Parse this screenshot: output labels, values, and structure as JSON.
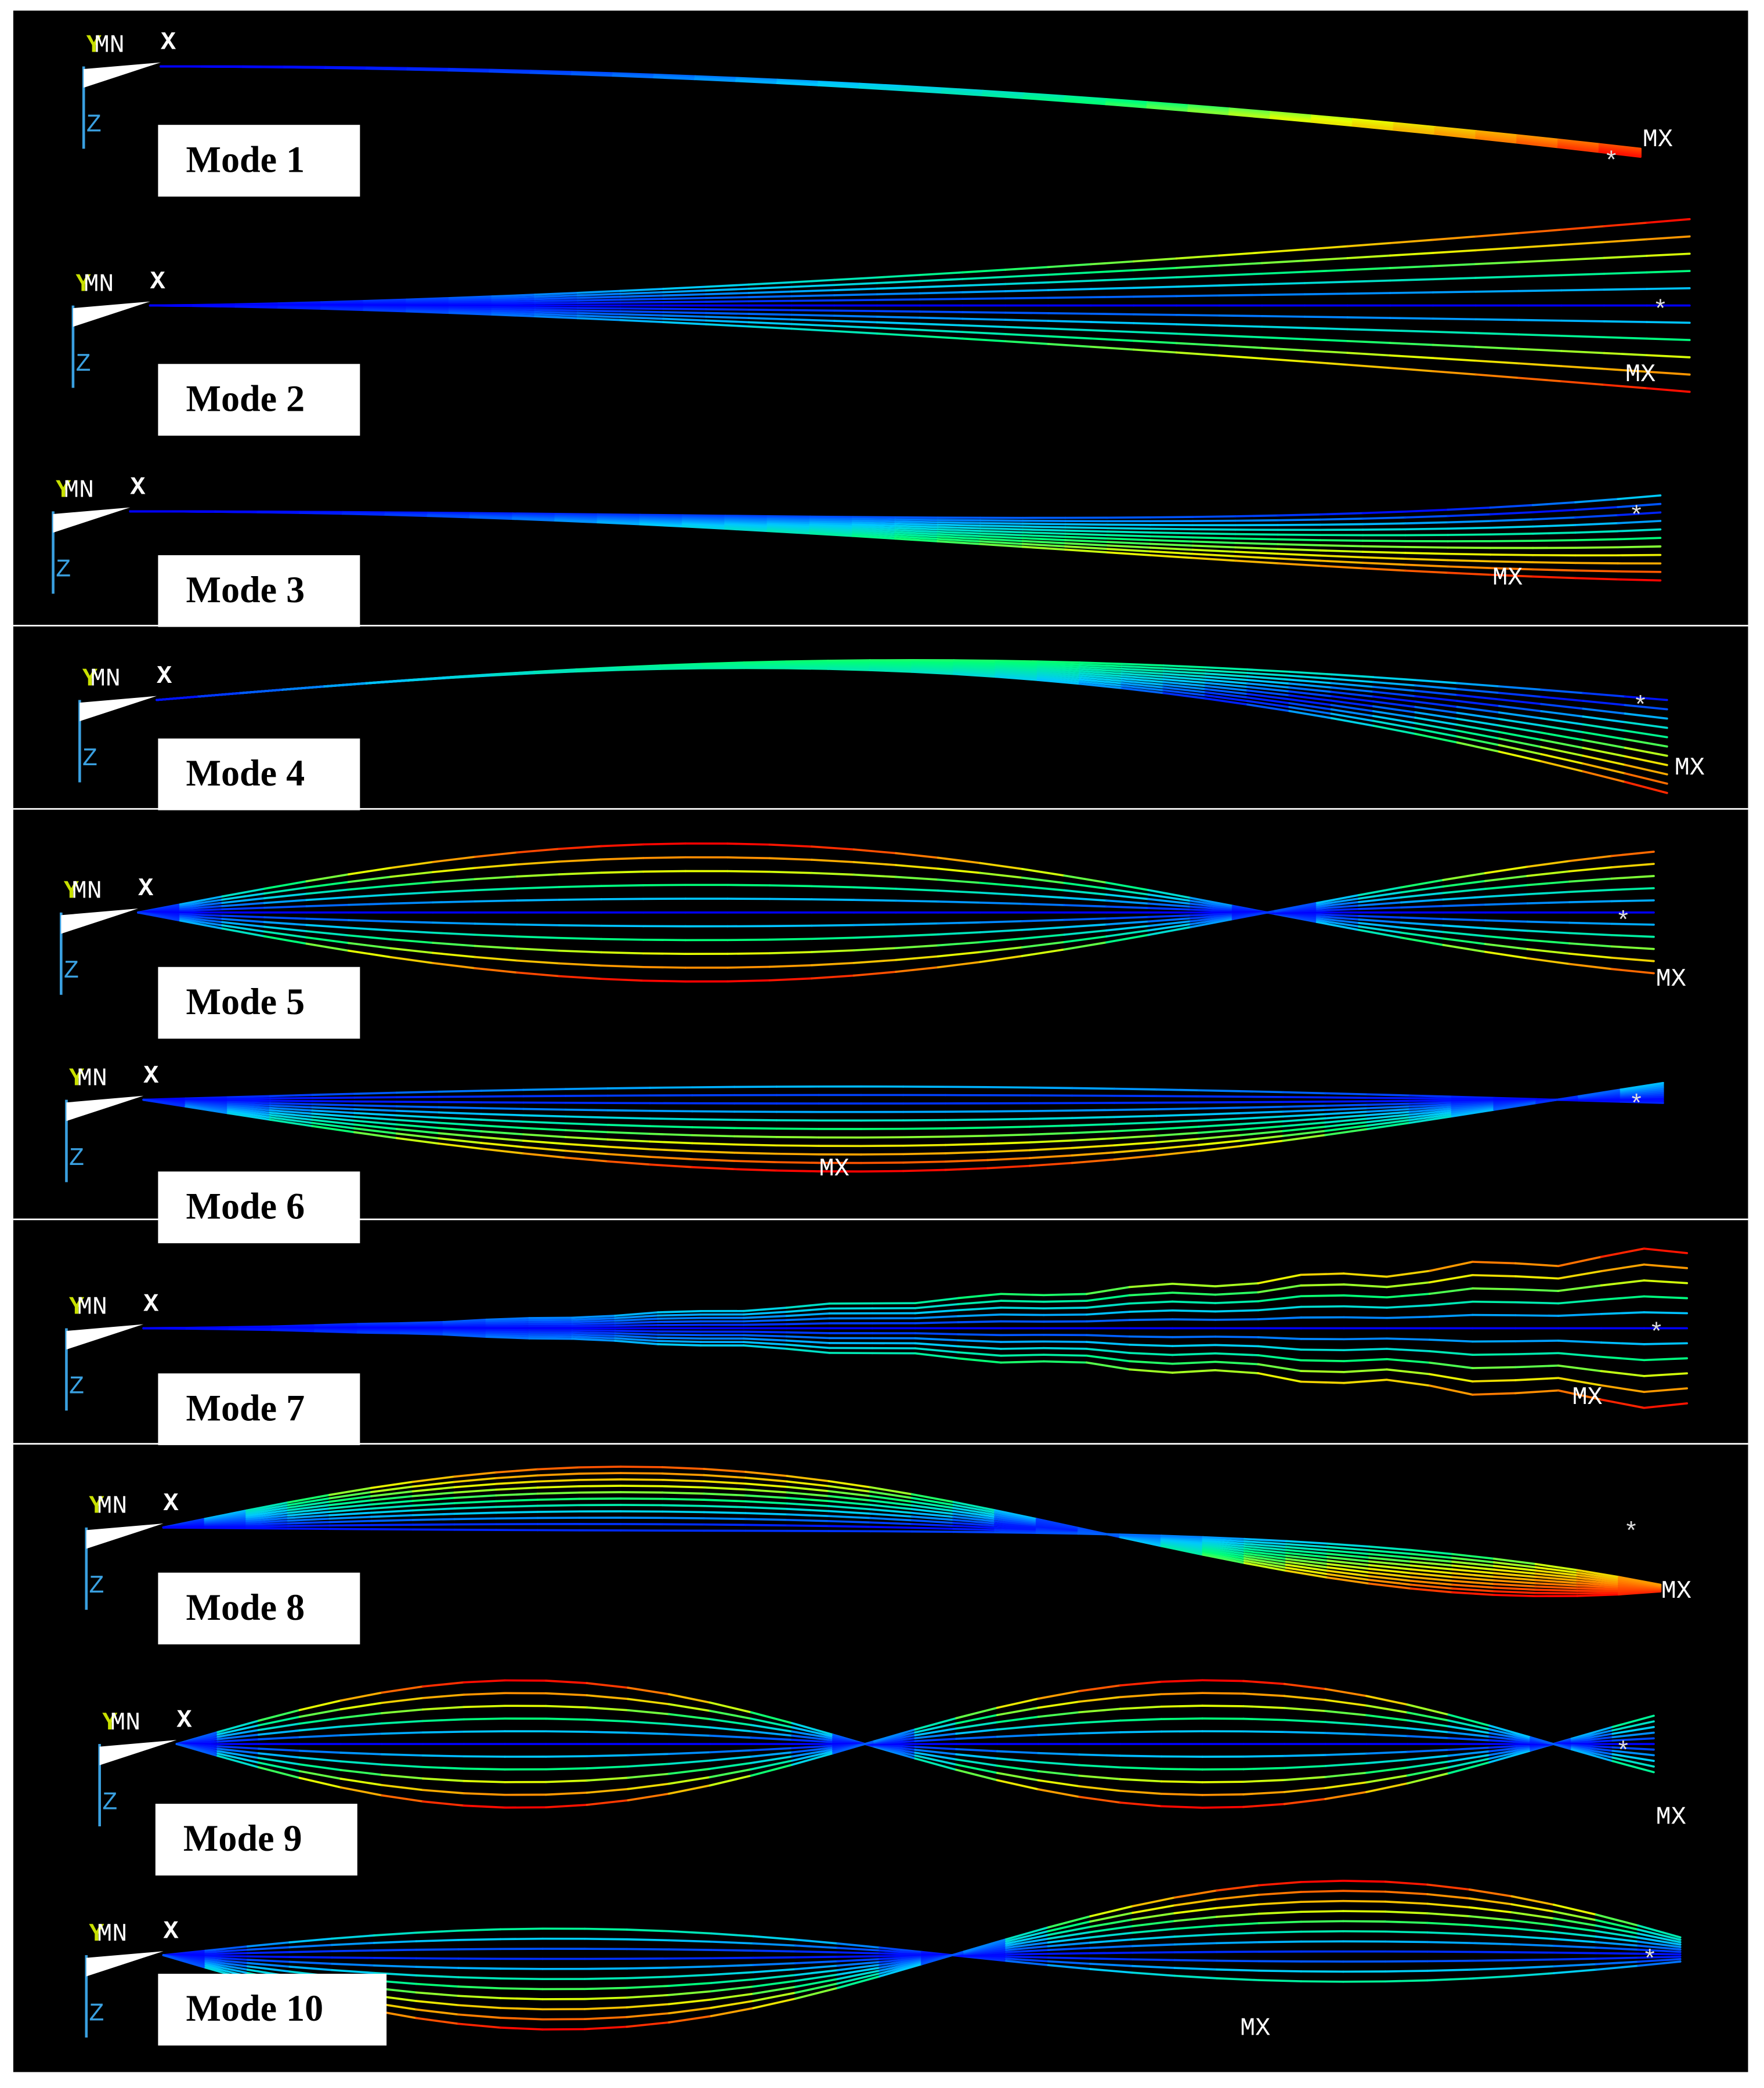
{
  "panels": [
    {
      "label": "Mode 1",
      "y_axis": "Y",
      "min": "MN",
      "x_axis": "X",
      "z_axis": "Z",
      "max": "MX",
      "node": "*"
    },
    {
      "label": "Mode 2",
      "y_axis": "Y",
      "min": "MN",
      "x_axis": "X",
      "z_axis": "Z",
      "max": "MX",
      "node": "*"
    },
    {
      "label": "Mode 3",
      "y_axis": "Y",
      "min": "MN",
      "x_axis": "X",
      "z_axis": "Z",
      "max": "MX",
      "node": "*"
    },
    {
      "label": "Mode 4",
      "y_axis": "Y",
      "min": "MN",
      "x_axis": "X",
      "z_axis": "Z",
      "max": "MX",
      "node": "*"
    },
    {
      "label": "Mode 5",
      "y_axis": "Y",
      "min": "MN",
      "x_axis": "X",
      "z_axis": "Z",
      "max": "MX",
      "node": "*"
    },
    {
      "label": "Mode 6",
      "y_axis": "Y",
      "min": "MN",
      "x_axis": "X",
      "z_axis": "Z",
      "max": "MX",
      "node": "*"
    },
    {
      "label": "Mode 7",
      "y_axis": "Y",
      "min": "MN",
      "x_axis": "X",
      "z_axis": "Z",
      "max": "MX",
      "node": "*"
    },
    {
      "label": "Mode 8",
      "y_axis": "Y",
      "min": "MN",
      "x_axis": "X",
      "z_axis": "Z",
      "max": "MX",
      "node": "*"
    },
    {
      "label": "Mode 9",
      "y_axis": "Y",
      "min": "MN",
      "x_axis": "X",
      "z_axis": "Z",
      "max": "MX",
      "node": "*"
    },
    {
      "label": "Mode 10",
      "y_axis": "Y",
      "min": "MN",
      "x_axis": "X",
      "z_axis": "Z",
      "max": "MX",
      "node": "*"
    }
  ]
}
